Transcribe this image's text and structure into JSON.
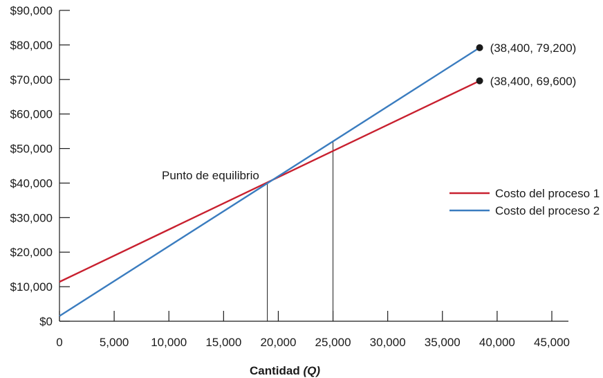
{
  "chart_data": {
    "type": "line",
    "xlabel": "Cantidad",
    "xlabel_var": "(Q)",
    "ylabel": "",
    "xlim": [
      0,
      45000
    ],
    "ylim": [
      0,
      90000
    ],
    "x_ticks": [
      0,
      5000,
      10000,
      15000,
      20000,
      25000,
      30000,
      35000,
      40000,
      45000
    ],
    "x_tick_labels": [
      "0",
      "5,000",
      "10,000",
      "15,000",
      "20,000",
      "25,000",
      "30,000",
      "35,000",
      "40,000",
      "45,000"
    ],
    "y_ticks": [
      0,
      10000,
      20000,
      30000,
      40000,
      50000,
      60000,
      70000,
      80000,
      90000
    ],
    "y_tick_labels": [
      "$0",
      "$10,000",
      "$20,000",
      "$30,000",
      "$40,000",
      "$50,000",
      "$60,000",
      "$70,000",
      "$80,000",
      "$90,000"
    ],
    "grid": false,
    "legend_position": "right",
    "series": [
      {
        "name": "Costo del proceso 1",
        "color": "#c8202f",
        "x": [
          0,
          38400
        ],
        "y": [
          11400,
          69600
        ]
      },
      {
        "name": "Costo del proceso 2",
        "color": "#3a7cbf",
        "x": [
          0,
          38400
        ],
        "y": [
          1500,
          79200
        ]
      }
    ],
    "endpoints": [
      {
        "x": 38400,
        "y": 79200,
        "label": "(38,400, 79,200)"
      },
      {
        "x": 38400,
        "y": 69600,
        "label": "(38,400, 69,600)"
      }
    ],
    "vertical_markers": [
      {
        "x": 19000,
        "y_top": 40200
      },
      {
        "x": 25000,
        "y_top": 52300
      }
    ],
    "annotations": [
      {
        "text": "Punto de equilibrio",
        "x": 19000,
        "y": 40200
      }
    ]
  }
}
